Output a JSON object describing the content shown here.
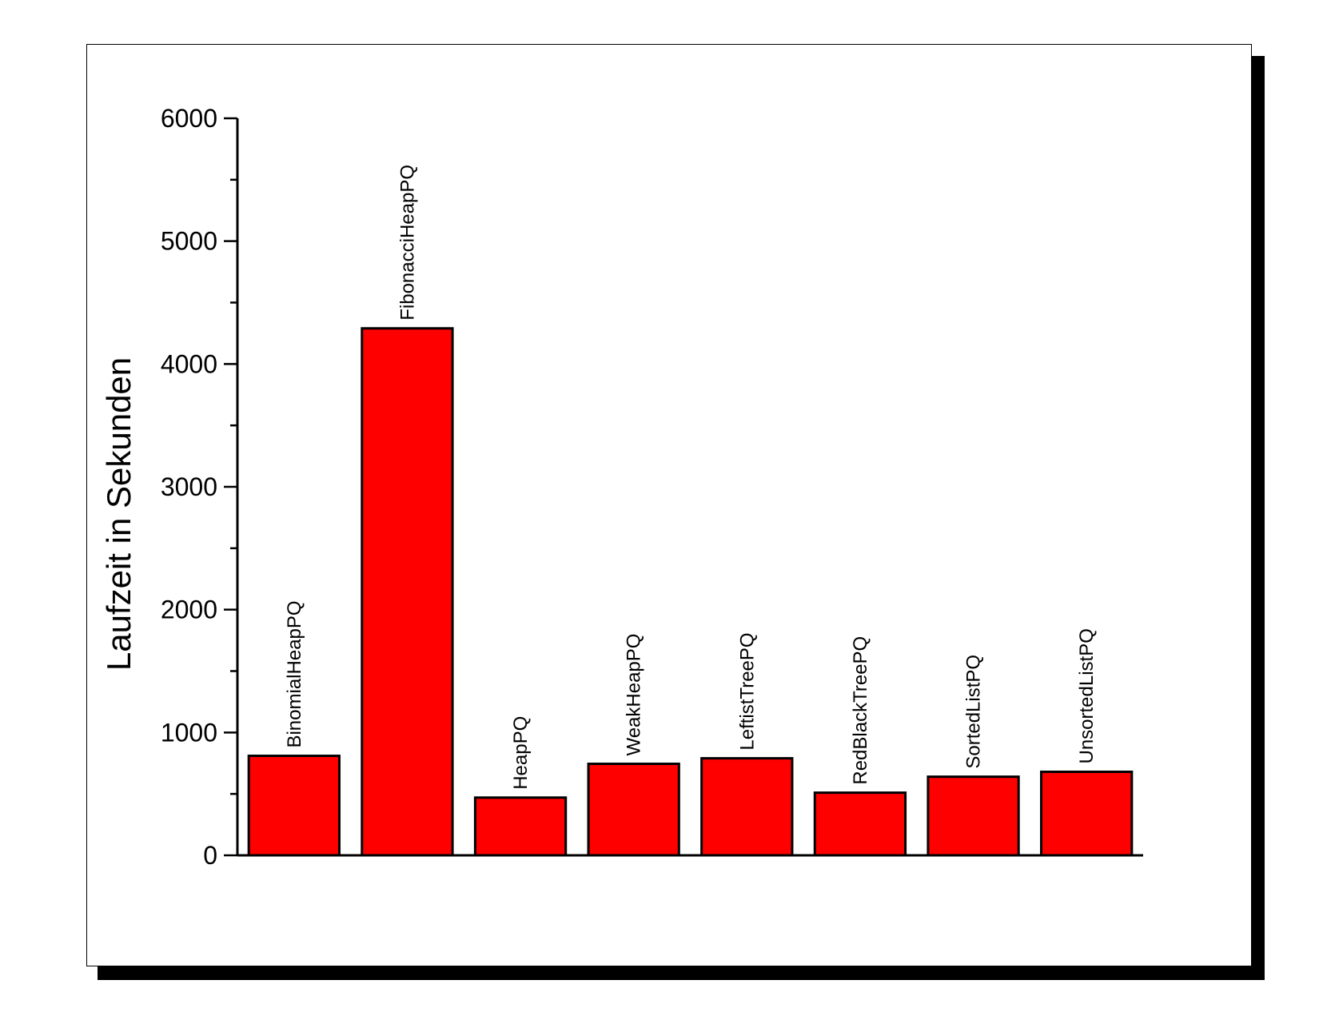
{
  "chart_data": {
    "type": "bar",
    "categories": [
      "BinomialHeapPQ",
      "FibonacciHeapPQ",
      "HeapPQ",
      "WeakHeapPQ",
      "LeftistTreePQ",
      "RedBlackTreePQ",
      "SortedListPQ",
      "UnsortedListPQ"
    ],
    "values": [
      810,
      4290,
      470,
      745,
      790,
      510,
      640,
      680
    ],
    "xlabel": "",
    "ylabel": "Laufzeit in Sekunden",
    "ylim": [
      0,
      6000
    ],
    "yticks": [
      "0",
      "1000",
      "2000",
      "3000",
      "4000",
      "5000",
      "6000"
    ],
    "grid": false,
    "bar_color": "#ff0000",
    "bar_edge_color": "#000000"
  }
}
